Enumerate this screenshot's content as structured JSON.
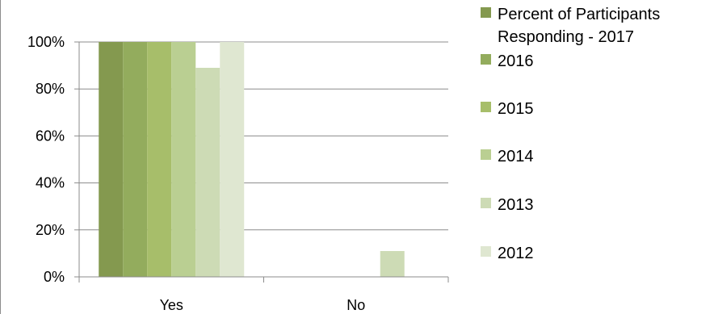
{
  "chart_data": {
    "type": "bar",
    "categories": [
      "Yes",
      "No"
    ],
    "series": [
      {
        "name": "Percent of Participants Responding - 2017",
        "color": "#84994f",
        "values": [
          100,
          0
        ]
      },
      {
        "name": "2016",
        "color": "#93ac5d",
        "values": [
          100,
          0
        ]
      },
      {
        "name": "2015",
        "color": "#a7be6a",
        "values": [
          100,
          0
        ]
      },
      {
        "name": "2014",
        "color": "#bacf92",
        "values": [
          100,
          0
        ]
      },
      {
        "name": "2013",
        "color": "#cddbb5",
        "values": [
          89,
          11
        ]
      },
      {
        "name": "2012",
        "color": "#dfe7d1",
        "values": [
          100,
          0
        ]
      }
    ],
    "yticks": [
      "0%",
      "20%",
      "40%",
      "60%",
      "80%",
      "100%"
    ],
    "ylim": [
      0,
      100
    ],
    "gridlines": true,
    "legend_position": "right"
  }
}
